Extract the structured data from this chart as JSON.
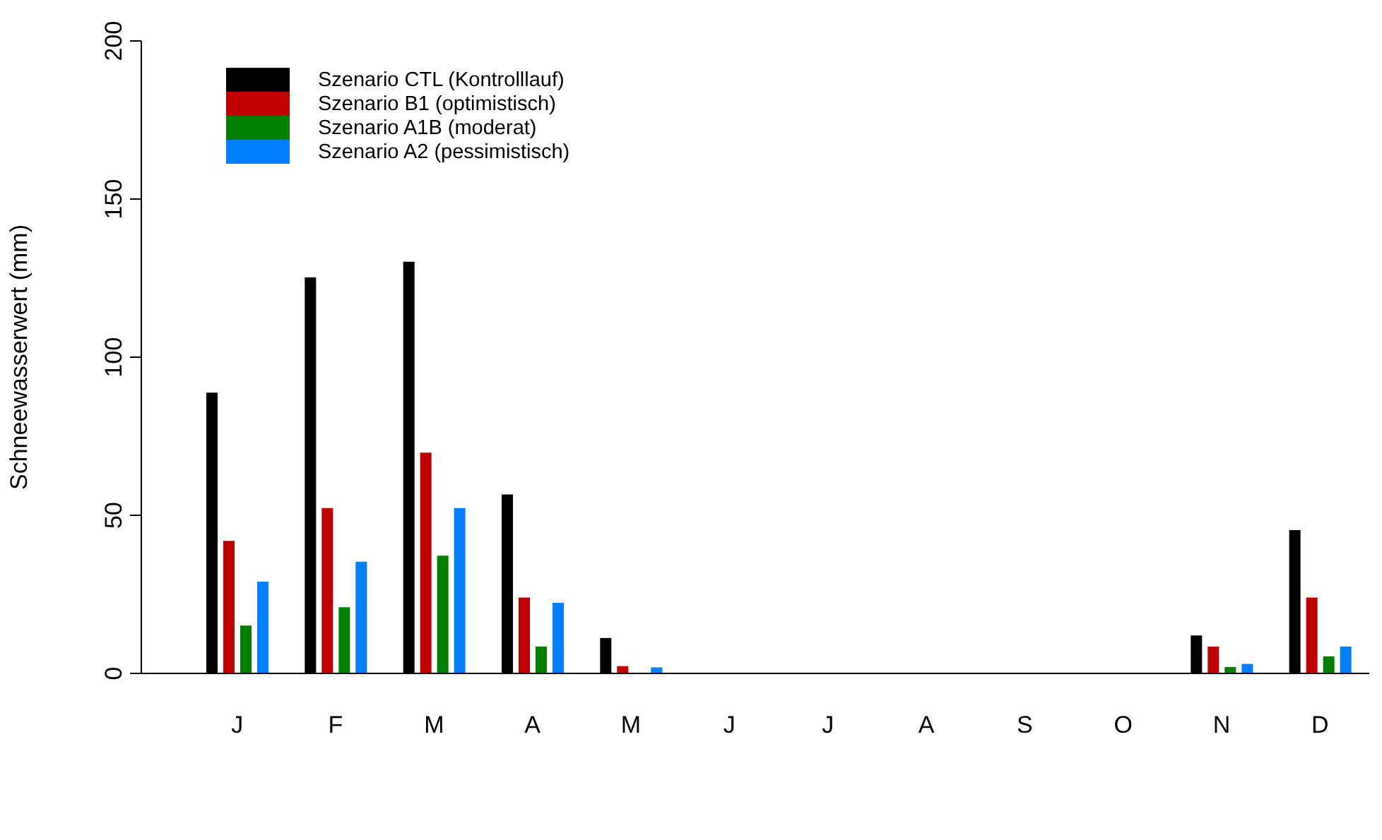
{
  "chart_data": {
    "type": "bar",
    "ylabel": "Schneewasserwert (mm)",
    "categories": [
      "J",
      "F",
      "M",
      "A",
      "M",
      "J",
      "J",
      "A",
      "S",
      "O",
      "N",
      "D"
    ],
    "series": [
      {
        "name": "Szenario CTL (Kontrolllauf)",
        "color": "#000000",
        "values": [
          88.8,
          125.2,
          130.2,
          56.6,
          11.2,
          null,
          0,
          0,
          0,
          null,
          12,
          45.3
        ]
      },
      {
        "name": "Szenario B1 (optimistisch)",
        "color": "#c00000",
        "values": [
          41.9,
          52.3,
          69.8,
          24,
          2.3,
          0,
          0,
          0,
          0,
          null,
          8.5,
          24
        ]
      },
      {
        "name": "Szenario A1B (moderat)",
        "color": "#008000",
        "values": [
          15.1,
          20.9,
          37.2,
          8.5,
          null,
          0,
          0,
          0,
          0,
          null,
          2,
          5.4
        ]
      },
      {
        "name": "Szenario A2 (pessimistisch)",
        "color": "#0080ff",
        "values": [
          29,
          35.3,
          52.3,
          22.3,
          1.9,
          0,
          0,
          0,
          0,
          0,
          3,
          8.5
        ]
      }
    ],
    "ylim": [
      0,
      200
    ],
    "yticks": [
      0,
      50,
      100,
      150,
      200
    ],
    "grid": false,
    "legend": "top left"
  }
}
